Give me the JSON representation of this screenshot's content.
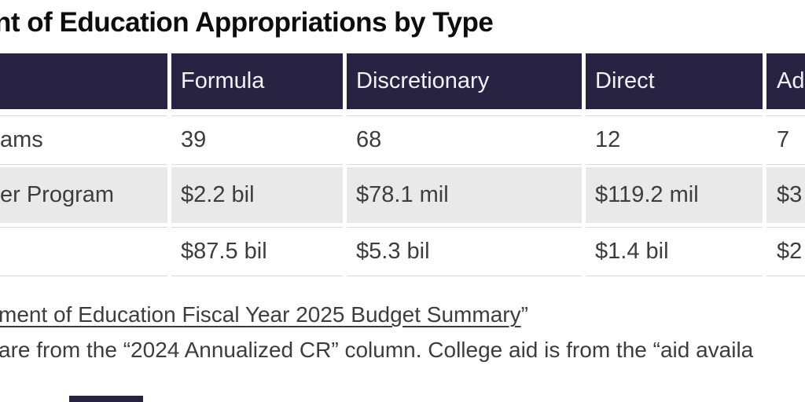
{
  "title": "nt of Education Appropriations by Type",
  "chart_data": {
    "type": "table",
    "title": "nt of Education Appropriations by Type",
    "columns": [
      "",
      "Formula",
      "Discretionary",
      "Direct",
      "Ad"
    ],
    "rows": [
      {
        "label": "ams",
        "values": [
          "39",
          "68",
          "12",
          "7"
        ],
        "shaded": false
      },
      {
        "label": "er Program",
        "values": [
          "$2.2 bil",
          "$78.1 mil",
          "$119.2 mil",
          "$3"
        ],
        "shaded": true
      },
      {
        "label": "",
        "values": [
          "$87.5 bil",
          "$5.3 bil",
          "$1.4 bil",
          "$2"
        ],
        "shaded": false
      }
    ],
    "notes": [
      "ment of Education Fiscal Year 2025 Budget Summary”",
      "are from the “2024 Annualized CR” column. College aid is from the “aid availa"
    ],
    "layout": {
      "header_style": "dark band with white column separators",
      "shaded_row_index": 1
    }
  },
  "footer": {
    "line1_link": "ment of Education Fiscal Year 2025 Budget Summary",
    "line1_suffix": "”",
    "line2": "are from the “2024 Annualized CR” column. College aid is from the “aid availa"
  },
  "colors": {
    "header_bg": "#282343",
    "header_text": "#f2f2f4",
    "shaded_row_bg": "#e9e9e9",
    "body_text": "#3d3d3d",
    "title_text": "#0d0d0d",
    "row_border": "#d9d9d9"
  }
}
